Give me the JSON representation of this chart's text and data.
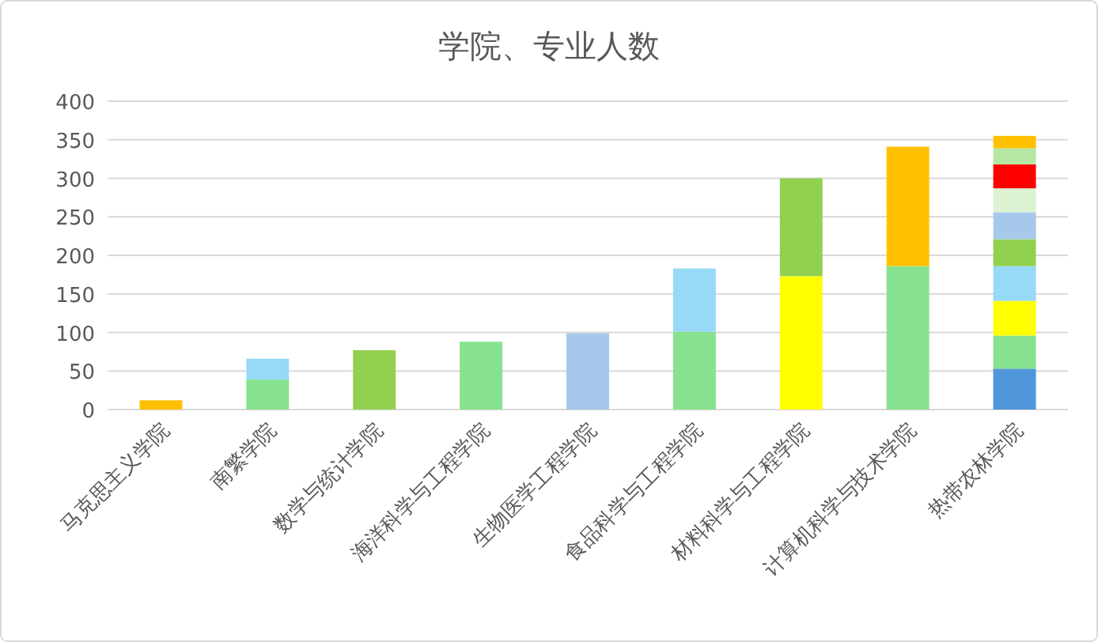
{
  "chart_data": {
    "type": "bar",
    "title": "学院、专业人数",
    "stacked": true,
    "grid": "y",
    "categories": [
      "马克思主义学院",
      "南繁学院",
      "数学与统计学院",
      "海洋科学与工程学院",
      "生物医学工程学院",
      "食品科学与工程学院",
      "材料科学与工程学院",
      "计算机科学与技术学院",
      "热带农林学院"
    ],
    "ylim": [
      0,
      400
    ],
    "yticks": [
      0,
      50,
      100,
      150,
      200,
      250,
      300,
      350,
      400
    ],
    "series": [
      {
        "values": [
          12,
          39,
          77,
          88,
          99,
          101,
          173,
          186,
          53
        ],
        "colors": [
          "#ffc000",
          "#86e28e",
          "#92d050",
          "#86e28e",
          "#a6c8ea",
          "#86e28e",
          "#ffff00",
          "#86e28e",
          "#5096da"
        ]
      },
      {
        "values": [
          null,
          27,
          null,
          null,
          null,
          82,
          127,
          155,
          43
        ],
        "colors": [
          null,
          "#97daf7",
          null,
          null,
          null,
          "#97daf7",
          "#92d050",
          "#ffc000",
          "#86e28e"
        ]
      },
      {
        "values": [
          null,
          null,
          null,
          null,
          null,
          null,
          null,
          null,
          45
        ],
        "colors": [
          null,
          null,
          null,
          null,
          null,
          null,
          null,
          null,
          "#ffff00"
        ]
      },
      {
        "values": [
          null,
          null,
          null,
          null,
          null,
          null,
          null,
          null,
          45
        ],
        "colors": [
          null,
          null,
          null,
          null,
          null,
          null,
          null,
          null,
          "#97daf7"
        ]
      },
      {
        "values": [
          null,
          null,
          null,
          null,
          null,
          null,
          null,
          null,
          35
        ],
        "colors": [
          null,
          null,
          null,
          null,
          null,
          null,
          null,
          null,
          "#92d050"
        ]
      },
      {
        "values": [
          null,
          null,
          null,
          null,
          null,
          null,
          null,
          null,
          35
        ],
        "colors": [
          null,
          null,
          null,
          null,
          null,
          null,
          null,
          null,
          "#a6c8ea"
        ]
      },
      {
        "values": [
          null,
          null,
          null,
          null,
          null,
          null,
          null,
          null,
          31
        ],
        "colors": [
          null,
          null,
          null,
          null,
          null,
          null,
          null,
          null,
          "#dbf3d3"
        ]
      },
      {
        "values": [
          null,
          null,
          null,
          null,
          null,
          null,
          null,
          null,
          31
        ],
        "colors": [
          null,
          null,
          null,
          null,
          null,
          null,
          null,
          null,
          "#ff0000"
        ]
      },
      {
        "values": [
          null,
          null,
          null,
          null,
          null,
          null,
          null,
          null,
          21
        ],
        "colors": [
          null,
          null,
          null,
          null,
          null,
          null,
          null,
          null,
          "#b6e6a4"
        ]
      },
      {
        "values": [
          null,
          null,
          null,
          null,
          null,
          null,
          null,
          null,
          16
        ],
        "colors": [
          null,
          null,
          null,
          null,
          null,
          null,
          null,
          null,
          "#ffc000"
        ]
      }
    ]
  }
}
